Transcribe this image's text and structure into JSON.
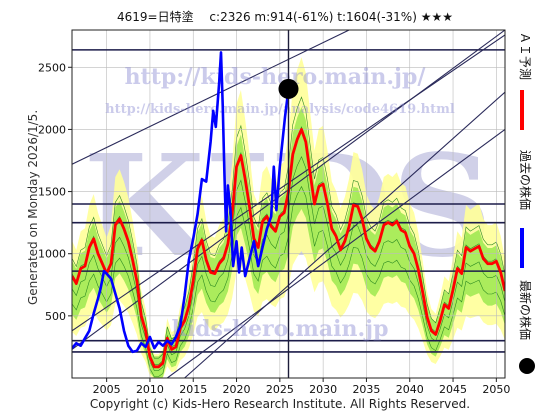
{
  "header": {
    "title": "4619=日特塗　 c:2326  m:914(-61%)  t:1604(-31%)  ★★★"
  },
  "side_text": "Generated on Monday 2026/1/5.",
  "copyright": "Copyright (c) Kids-Hero Research Institute. All Rights Reserved.",
  "watermarks": {
    "url_top": "http://kids-hero.main.jp/",
    "url_analysis": "http://kids-hero.main.jp/analysis/code4619.html",
    "big": "KIDS",
    "bottom": "kids-hero.main.jp"
  },
  "legend": {
    "ai_forecast": "ＡＩ予測",
    "past_price": "過去の株価",
    "latest_price": "最新の株価"
  },
  "colors": {
    "ai_forecast": "#ff0000",
    "past_price": "#0000ff",
    "latest_marker": "#000000",
    "band_outer": "#ffff99",
    "band_inner": "#66dd22",
    "trend_lines": "#2a2a5a",
    "h_lines": "#1c1c4a"
  },
  "chart_data": {
    "type": "line",
    "title": "4619=日特塗　 c:2326  m:914(-61%)  t:1604(-31%)  ★★★",
    "xlim": [
      2001,
      2051
    ],
    "ylim": [
      0,
      2800
    ],
    "x_ticks": [
      2005,
      2010,
      2015,
      2020,
      2025,
      2030,
      2035,
      2040,
      2045,
      2050
    ],
    "y_ticks": [
      500,
      1000,
      1500,
      2000,
      2500
    ],
    "grid": true,
    "legend_position": "right-vertical",
    "current_price": {
      "x": 2026.0,
      "y": 2326
    },
    "marker_vertical_x": 2026.0,
    "horizontal_levels": [
      2640,
      1400,
      1250,
      860,
      300,
      210
    ],
    "trend_lines": [
      {
        "x1": 2001,
        "y1": 230,
        "x2": 2051,
        "y2": 2800
      },
      {
        "x1": 2001,
        "y1": 1720,
        "x2": 2033,
        "y2": 2800
      },
      {
        "x1": 2001,
        "y1": 380,
        "x2": 2051,
        "y2": 2760
      },
      {
        "x1": 2012,
        "y1": 0,
        "x2": 2051,
        "y2": 2000
      },
      {
        "x1": 2014,
        "y1": 0,
        "x2": 2051,
        "y2": 2300
      }
    ],
    "series": [
      {
        "name": "過去の株価",
        "x": [
          2001,
          2001.5,
          2002,
          2002.5,
          2003,
          2003.5,
          2004,
          2004.3,
          2004.7,
          2005,
          2005.5,
          2006,
          2006.5,
          2007,
          2007.5,
          2008,
          2008.5,
          2009,
          2009.5,
          2010,
          2010.5,
          2011,
          2011.5,
          2012,
          2012.5,
          2013,
          2013.5,
          2014,
          2014.5,
          2015,
          2015.5,
          2016,
          2016.5,
          2017,
          2017.3,
          2017.6,
          2018,
          2018.2,
          2018.4,
          2018.6,
          2018.8,
          2019,
          2019.3,
          2019.6,
          2020,
          2020.3,
          2020.6,
          2021,
          2021.5,
          2022,
          2022.5,
          2023,
          2023.5,
          2024,
          2024.3,
          2024.6,
          2025,
          2025.3,
          2025.6,
          2026.0
        ],
        "values": [
          240,
          280,
          260,
          320,
          380,
          520,
          640,
          720,
          860,
          840,
          800,
          680,
          560,
          380,
          260,
          210,
          220,
          280,
          250,
          330,
          240,
          290,
          260,
          300,
          270,
          330,
          420,
          660,
          950,
          1120,
          1320,
          1600,
          1580,
          1900,
          2150,
          2020,
          2380,
          2620,
          2200,
          1650,
          1180,
          1550,
          1350,
          900,
          1100,
          850,
          1050,
          820,
          960,
          1100,
          900,
          1050,
          1200,
          1300,
          1700,
          1350,
          1700,
          1900,
          2100,
          2326
        ]
      },
      {
        "name": "ＡＩ予測",
        "x": [
          2001,
          2001.5,
          2002,
          2002.5,
          2003,
          2003.5,
          2004,
          2005,
          2005.5,
          2006,
          2006.5,
          2007,
          2007.5,
          2008,
          2008.5,
          2009,
          2009.5,
          2010,
          2010.5,
          2011,
          2011.5,
          2012,
          2012.5,
          2013,
          2013.5,
          2014,
          2014.5,
          2015,
          2015.5,
          2016,
          2016.5,
          2017,
          2017.5,
          2018,
          2018.5,
          2019,
          2019.5,
          2020,
          2020.5,
          2021,
          2021.5,
          2022,
          2022.5,
          2023,
          2023.5,
          2024,
          2024.5,
          2025,
          2025.5,
          2026,
          2026.5,
          2027,
          2027.5,
          2028,
          2028.5,
          2029,
          2029.5,
          2030,
          2030.5,
          2031,
          2031.5,
          2032,
          2032.5,
          2033,
          2033.5,
          2034,
          2034.5,
          2035,
          2035.5,
          2036,
          2036.5,
          2037,
          2037.5,
          2038,
          2038.5,
          2039,
          2039.5,
          2040,
          2040.5,
          2041,
          2041.5,
          2042,
          2042.5,
          2043,
          2043.5,
          2044,
          2044.5,
          2045,
          2045.5,
          2046,
          2046.5,
          2047,
          2047.5,
          2048,
          2048.5,
          2049,
          2049.5,
          2050,
          2050.5,
          2051
        ],
        "values": [
          820,
          760,
          880,
          900,
          1050,
          1120,
          1000,
          840,
          920,
          1230,
          1280,
          1200,
          1100,
          950,
          780,
          500,
          380,
          170,
          90,
          90,
          120,
          320,
          230,
          250,
          400,
          460,
          580,
          780,
          1040,
          1110,
          950,
          850,
          840,
          920,
          960,
          1080,
          1320,
          1700,
          1790,
          1600,
          1380,
          1120,
          1050,
          1260,
          1300,
          1220,
          1180,
          1300,
          1330,
          1500,
          1800,
          1920,
          2000,
          1900,
          1650,
          1400,
          1540,
          1560,
          1400,
          1200,
          1140,
          1030,
          1100,
          1220,
          1390,
          1380,
          1280,
          1120,
          1050,
          1020,
          1100,
          1230,
          1250,
          1230,
          1260,
          1190,
          1170,
          1060,
          1000,
          870,
          690,
          490,
          380,
          350,
          460,
          590,
          560,
          710,
          880,
          840,
          1050,
          1020,
          1040,
          1060,
          960,
          920,
          920,
          940,
          850,
          700
        ]
      }
    ]
  }
}
